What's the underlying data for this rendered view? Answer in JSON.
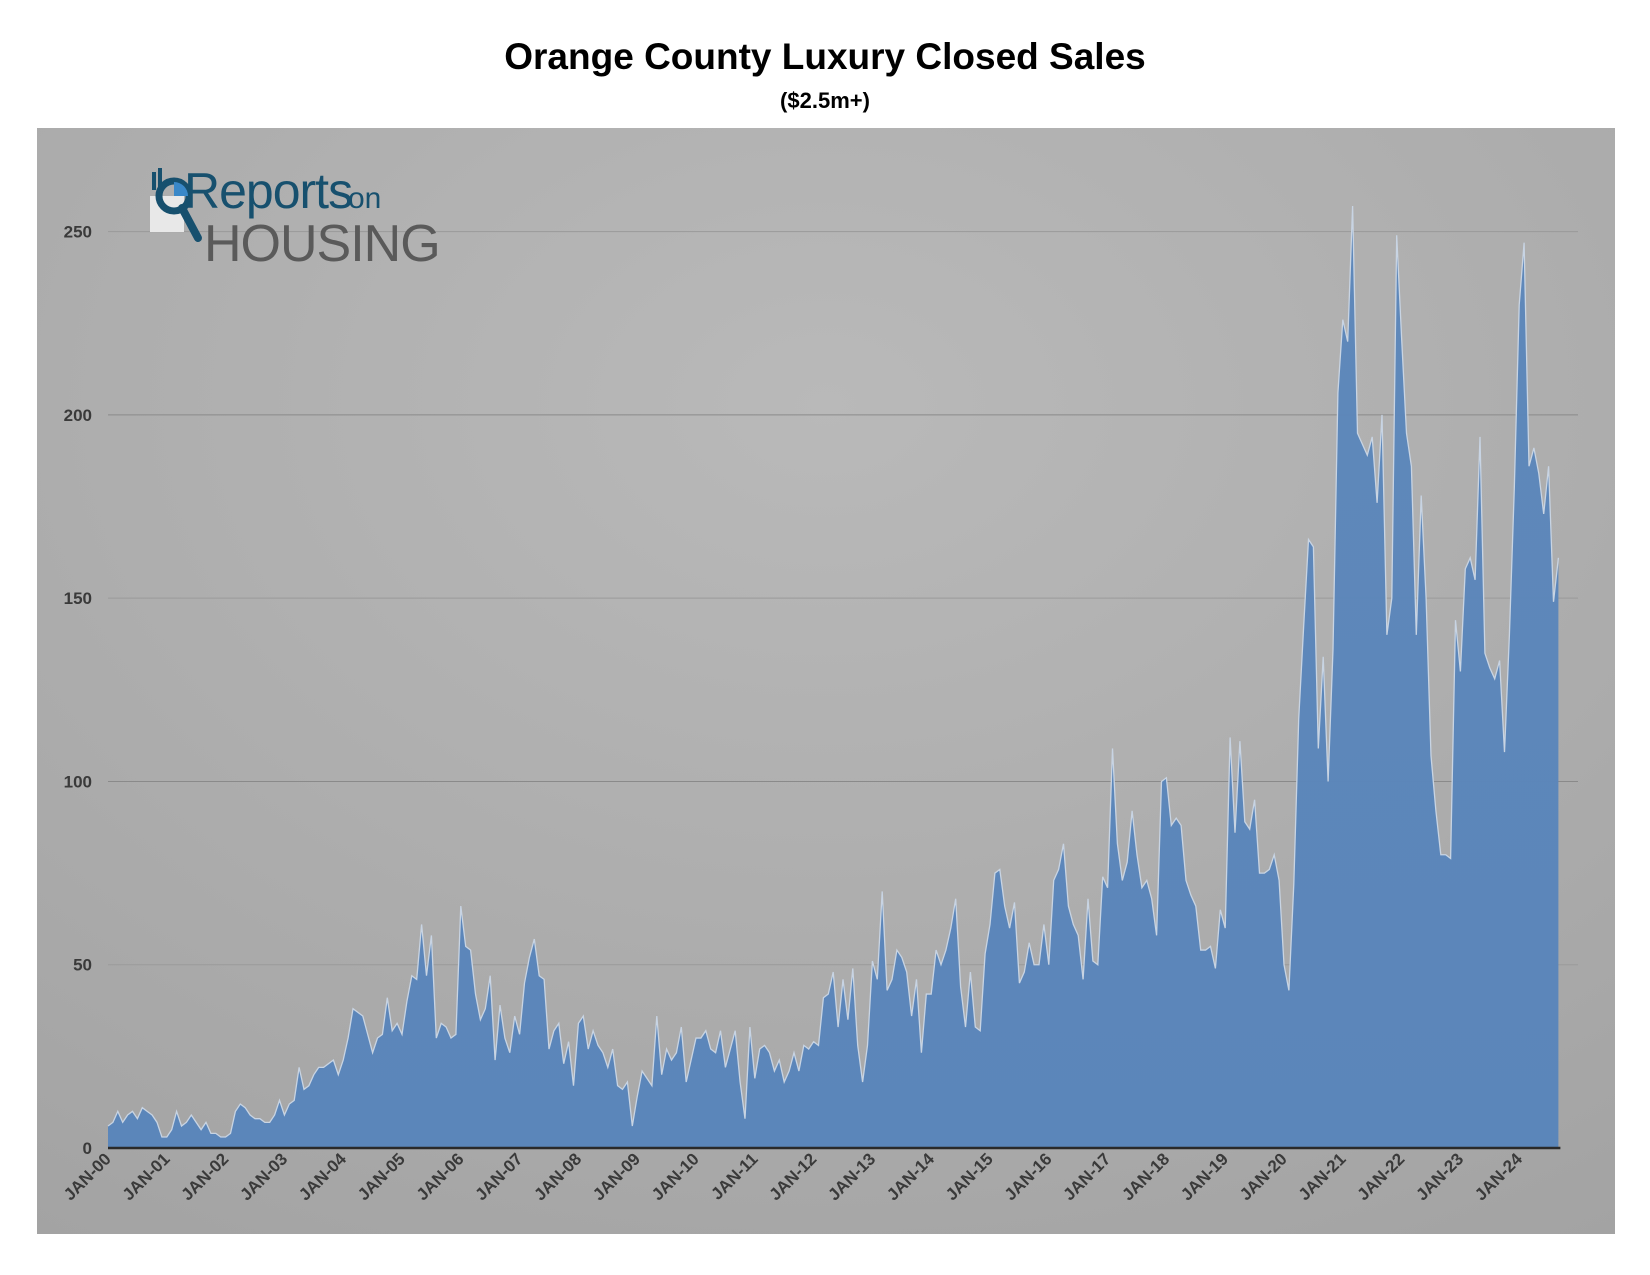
{
  "title": "Orange County Luxury Closed Sales",
  "subtitle": "($2.5m+)",
  "logo": {
    "line1": "Reports",
    "line1_suffix": "on",
    "line2": "HOUSING"
  },
  "colors": {
    "area_fill": "#5b86ba",
    "area_stroke": "#c8d4e3",
    "panel_center": "#b9b9b9",
    "panel_edge": "#a3a3a3",
    "logo_blue": "#17506e",
    "logo_gray": "#5a5a5a"
  },
  "chart_data": {
    "type": "area",
    "title": "Orange County Luxury Closed Sales",
    "subtitle": "($2.5m+)",
    "xlabel": "",
    "ylabel": "",
    "ylim": [
      0,
      275
    ],
    "yticks": [
      0,
      50,
      100,
      150,
      200,
      250
    ],
    "x_tick_labels": [
      "JAN-00",
      "JAN-01",
      "JAN-02",
      "JAN-03",
      "JAN-04",
      "JAN-05",
      "JAN-06",
      "JAN-07",
      "JAN-08",
      "JAN-09",
      "JAN-10",
      "JAN-11",
      "JAN-12",
      "JAN-13",
      "JAN-14",
      "JAN-15",
      "JAN-16",
      "JAN-17",
      "JAN-18",
      "JAN-19",
      "JAN-20",
      "JAN-21",
      "JAN-22",
      "JAN-23",
      "JAN-24"
    ],
    "x_start": "2000-01",
    "grid": true,
    "legend": "none",
    "series": [
      {
        "values": [
          6,
          7,
          10,
          7,
          9,
          10,
          8,
          11,
          10,
          9,
          7,
          3,
          3,
          5,
          10,
          6,
          7,
          9,
          7,
          5,
          7,
          4,
          4,
          3,
          3,
          4,
          10,
          12,
          11,
          9,
          8,
          8,
          7,
          7,
          9,
          13,
          9,
          12,
          13,
          22,
          16,
          17,
          20,
          22,
          22,
          23,
          24,
          20,
          24,
          30,
          38,
          37,
          36,
          31,
          26,
          30,
          31,
          41,
          32,
          34,
          31,
          40,
          47,
          46,
          61,
          47,
          58,
          30,
          34,
          33,
          30,
          31,
          66,
          55,
          54,
          42,
          35,
          38,
          47,
          24,
          39,
          30,
          26,
          36,
          31,
          45,
          52,
          57,
          47,
          46,
          27,
          32,
          34,
          23,
          29,
          17,
          34,
          36,
          27,
          32,
          28,
          26,
          22,
          27,
          17,
          16,
          18,
          6,
          14,
          21,
          19,
          17,
          36,
          20,
          27,
          24,
          26,
          33,
          18,
          24,
          30,
          30,
          32,
          27,
          26,
          32,
          22,
          27,
          32,
          18,
          8,
          33,
          19,
          27,
          28,
          26,
          21,
          24,
          18,
          21,
          26,
          21,
          28,
          27,
          29,
          28,
          41,
          42,
          48,
          33,
          46,
          35,
          49,
          28,
          18,
          28,
          51,
          46,
          70,
          43,
          46,
          54,
          52,
          48,
          36,
          46,
          26,
          42,
          42,
          54,
          50,
          54,
          60,
          68,
          44,
          33,
          48,
          33,
          32,
          53,
          61,
          75,
          76,
          66,
          60,
          67,
          45,
          48,
          56,
          50,
          50,
          61,
          50,
          73,
          76,
          83,
          66,
          61,
          58,
          46,
          68,
          51,
          50,
          74,
          71,
          109,
          83,
          73,
          78,
          92,
          80,
          71,
          73,
          68,
          58,
          100,
          101,
          88,
          90,
          88,
          73,
          69,
          66,
          54,
          54,
          55,
          49,
          65,
          60,
          112,
          86,
          111,
          89,
          87,
          95,
          75,
          75,
          76,
          80,
          73,
          50,
          43,
          72,
          117,
          142,
          166,
          164,
          109,
          134,
          100,
          136,
          206,
          226,
          220,
          257,
          195,
          192,
          189,
          194,
          176,
          200,
          140,
          150,
          249,
          221,
          195,
          186,
          140,
          178,
          150,
          107,
          92,
          80,
          80,
          79,
          144,
          130,
          158,
          161,
          155,
          194,
          135,
          131,
          128,
          133,
          108,
          140,
          180,
          230,
          247,
          186,
          191,
          184,
          173,
          186,
          149,
          161
        ]
      }
    ]
  }
}
